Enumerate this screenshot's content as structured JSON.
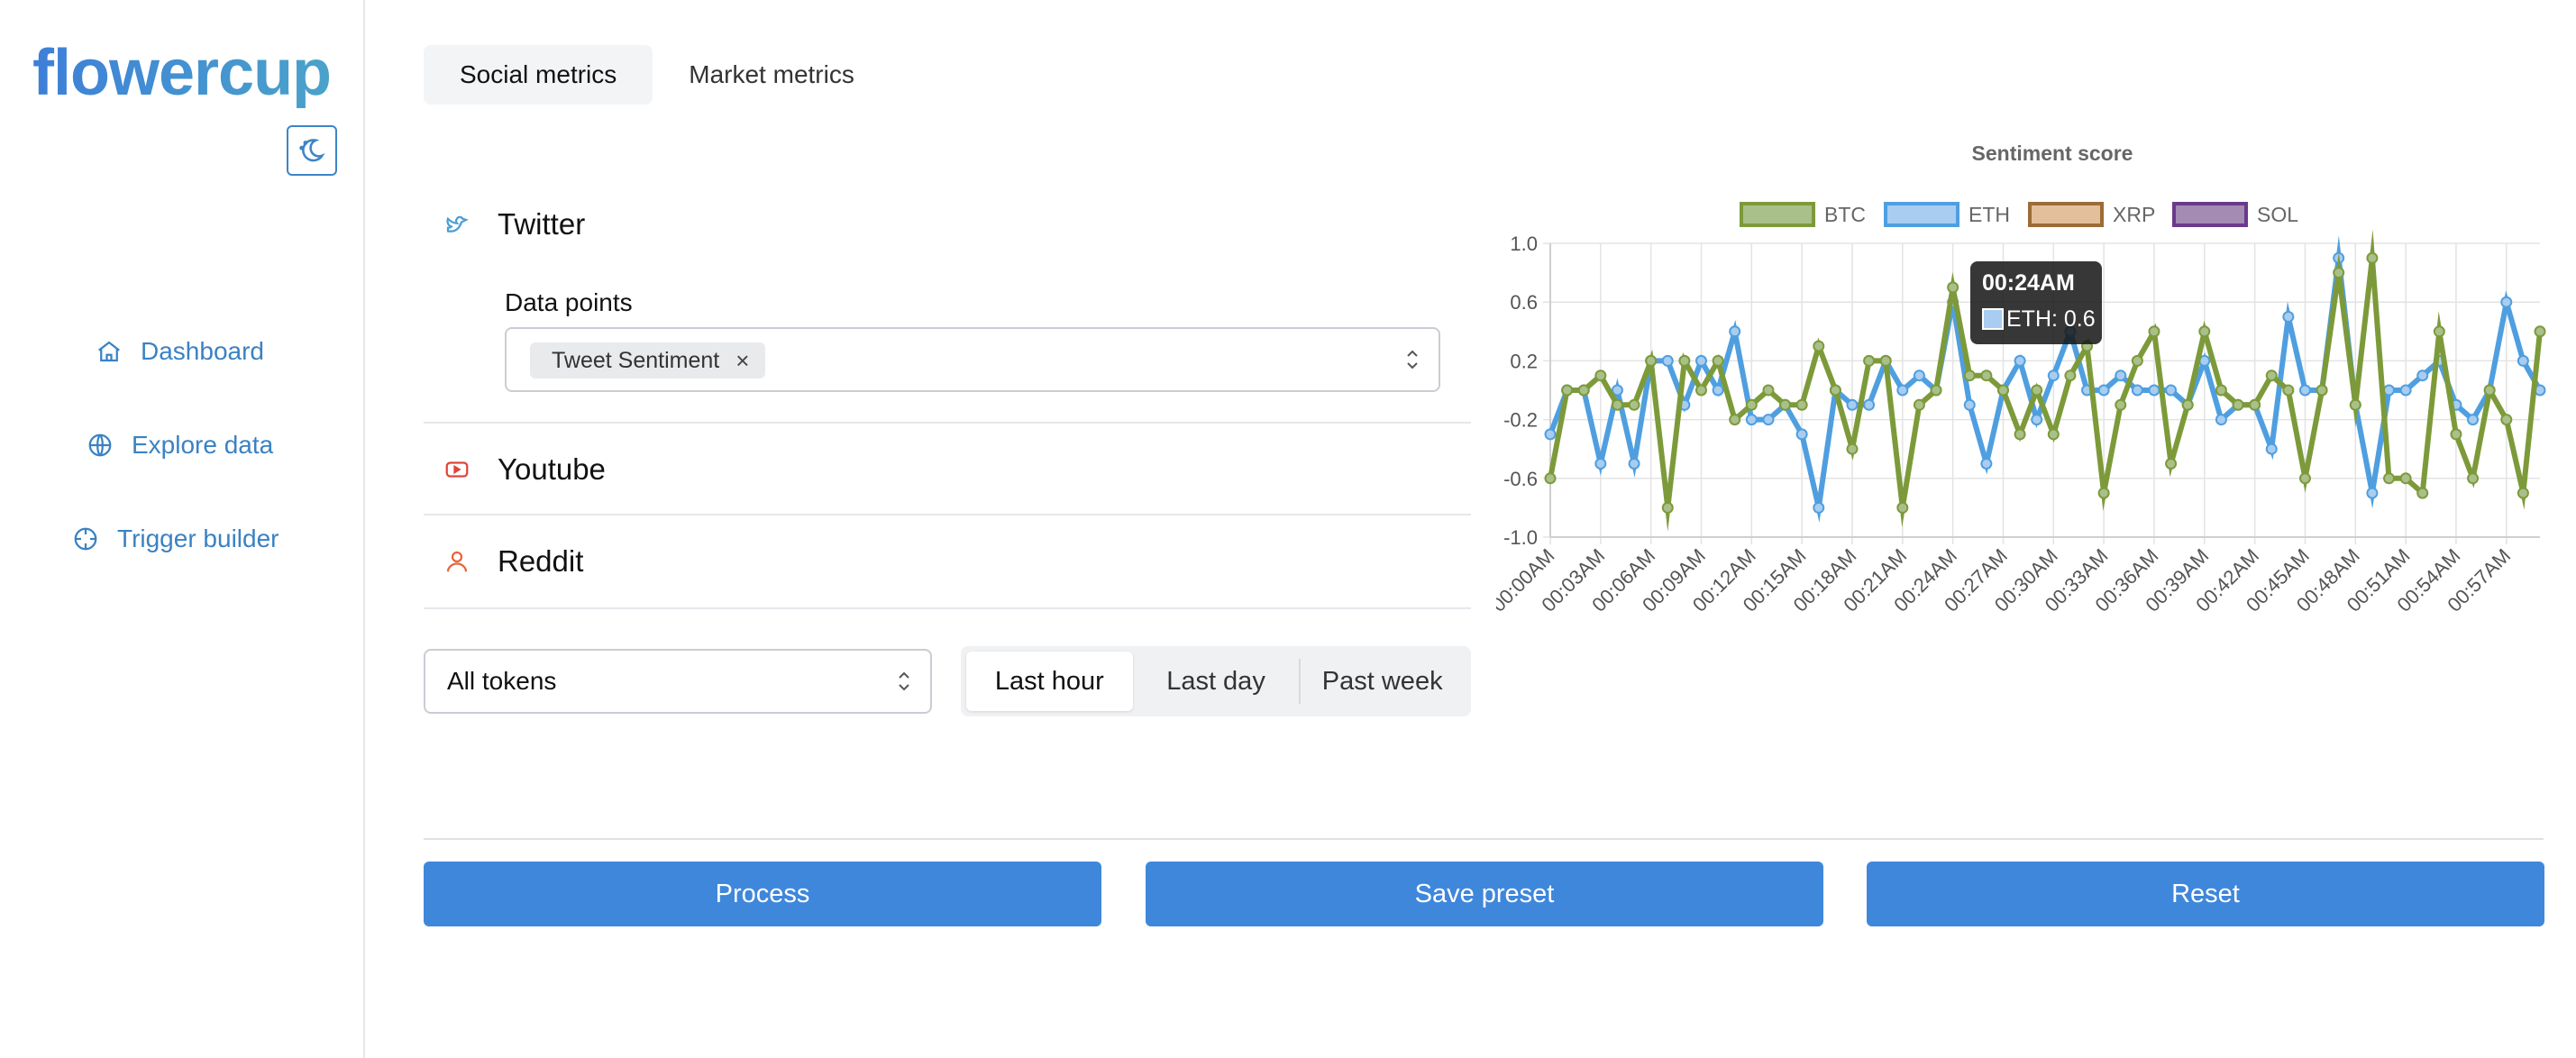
{
  "sidebar": {
    "logo": "flowercup",
    "items": [
      {
        "label": "Dashboard",
        "icon": "home-icon"
      },
      {
        "label": "Explore data",
        "icon": "globe-icon"
      },
      {
        "label": "Trigger builder",
        "icon": "crosshair-icon"
      }
    ]
  },
  "tabs": [
    {
      "label": "Social metrics",
      "active": true
    },
    {
      "label": "Market metrics",
      "active": false
    }
  ],
  "sources": {
    "twitter": {
      "label": "Twitter",
      "icon": "twitter-icon"
    },
    "youtube": {
      "label": "Youtube",
      "icon": "youtube-icon"
    },
    "reddit": {
      "label": "Reddit",
      "icon": "reddit-icon"
    }
  },
  "data_points": {
    "label": "Data points",
    "selected": "Tweet Sentiment"
  },
  "token_select": {
    "value": "All tokens"
  },
  "time_range": {
    "options": [
      "Last hour",
      "Last day",
      "Past week"
    ],
    "selected": "Last hour"
  },
  "actions": {
    "process": "Process",
    "save_preset": "Save preset",
    "reset": "Reset"
  },
  "tooltip": {
    "title": "00:24AM",
    "body": "ETH: 0.6"
  },
  "colors": {
    "accent": "#3f87db",
    "btc": "#7d9a3a",
    "eth": "#4f9fe0",
    "xrp": "#9c6b37",
    "sol": "#6b3a8a"
  },
  "chart_data": {
    "type": "line",
    "title": "Sentiment score",
    "ylim": [
      -1.0,
      1.0
    ],
    "yticks": [
      "1.0",
      "0.6",
      "0.2",
      "-0.2",
      "-0.6",
      "-1.0"
    ],
    "xticks": [
      "00:00AM",
      "00:03AM",
      "00:06AM",
      "00:09AM",
      "00:12AM",
      "00:15AM",
      "00:18AM",
      "00:21AM",
      "00:24AM",
      "00:27AM",
      "00:30AM",
      "00:33AM",
      "00:36AM",
      "00:39AM",
      "00:42AM",
      "00:45AM",
      "00:48AM",
      "00:51AM",
      "00:54AM",
      "00:57AM"
    ],
    "legend_position": "top",
    "grid": true,
    "x_minutes": [
      0,
      1,
      2,
      3,
      4,
      5,
      6,
      7,
      8,
      9,
      10,
      11,
      12,
      13,
      14,
      15,
      16,
      17,
      18,
      19,
      20,
      21,
      22,
      23,
      24,
      25,
      26,
      27,
      28,
      29,
      30,
      31,
      32,
      33,
      34,
      35,
      36,
      37,
      38,
      39,
      40,
      41,
      42,
      43,
      44,
      45,
      46,
      47,
      48,
      49,
      50,
      51,
      52,
      53,
      54,
      55,
      56,
      57,
      58,
      59
    ],
    "series": [
      {
        "name": "BTC",
        "color": "#7d9a3a",
        "fill": "#a9c08a",
        "values": [
          -0.6,
          0.0,
          0.0,
          0.1,
          -0.1,
          -0.1,
          0.2,
          -0.8,
          0.2,
          0.0,
          0.2,
          -0.2,
          -0.1,
          0.0,
          -0.1,
          -0.1,
          0.3,
          0.0,
          -0.4,
          0.2,
          0.2,
          -0.8,
          -0.1,
          0.0,
          0.7,
          0.1,
          0.1,
          0.0,
          -0.3,
          0.0,
          -0.3,
          0.1,
          0.3,
          -0.7,
          -0.1,
          0.2,
          0.4,
          -0.5,
          -0.1,
          0.4,
          0.0,
          -0.1,
          -0.1,
          0.1,
          0.0,
          -0.6,
          0.0,
          0.8,
          -0.1,
          0.9,
          -0.6,
          -0.6,
          -0.7,
          0.4,
          -0.3,
          -0.6,
          0.0,
          -0.2,
          -0.7,
          0.4
        ]
      },
      {
        "name": "ETH",
        "color": "#4f9fe0",
        "fill": "#a8cdf0",
        "values": [
          -0.3,
          0.0,
          0.0,
          -0.5,
          0.0,
          -0.5,
          0.2,
          0.2,
          -0.1,
          0.2,
          0.0,
          0.4,
          -0.2,
          -0.2,
          -0.1,
          -0.3,
          -0.8,
          0.0,
          -0.1,
          -0.1,
          0.2,
          0.0,
          0.1,
          0.0,
          0.6,
          -0.1,
          -0.5,
          0.0,
          0.2,
          -0.2,
          0.1,
          0.4,
          0.0,
          0.0,
          0.1,
          0.0,
          0.0,
          0.0,
          -0.1,
          0.2,
          -0.2,
          -0.1,
          -0.1,
          -0.4,
          0.5,
          0.0,
          0.0,
          0.9,
          -0.1,
          -0.7,
          0.0,
          0.0,
          0.1,
          0.2,
          -0.1,
          -0.2,
          0.0,
          0.6,
          0.2,
          0.0
        ]
      },
      {
        "name": "XRP",
        "color": "#9c6b37",
        "fill": "#e3bf9c",
        "values": []
      },
      {
        "name": "SOL",
        "color": "#6b3a8a",
        "fill": "#a38bb4",
        "values": []
      }
    ]
  }
}
